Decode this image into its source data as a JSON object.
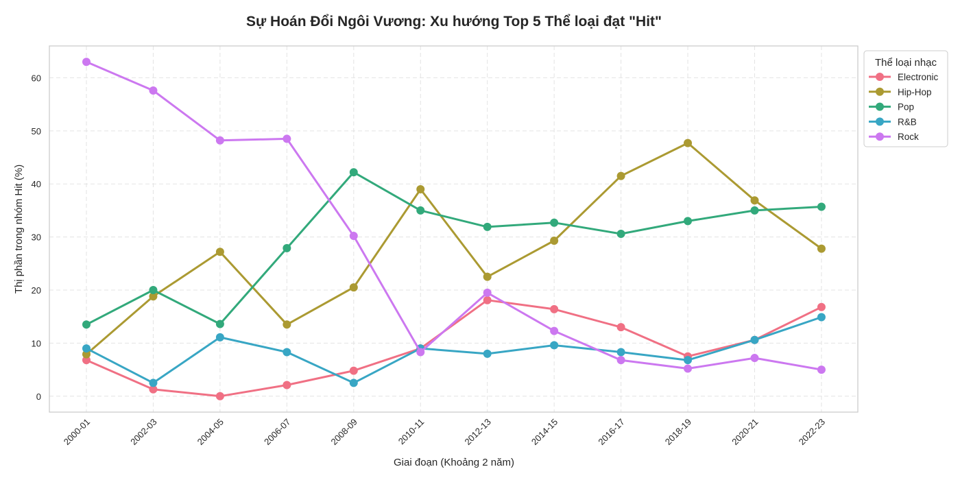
{
  "chart_data": {
    "type": "line",
    "title": "Sự Hoán Đổi Ngôi Vương: Xu hướng Top 5 Thể loại đạt \"Hit\"",
    "xlabel": "Giai đoạn (Khoảng 2 năm)",
    "ylabel": "Thị phần trong nhóm Hit (%)",
    "categories": [
      "2000-01",
      "2002-03",
      "2004-05",
      "2006-07",
      "2008-09",
      "2010-11",
      "2012-13",
      "2014-15",
      "2016-17",
      "2018-19",
      "2020-21",
      "2022-23"
    ],
    "ylim": [
      -3,
      66
    ],
    "yticks": [
      0,
      10,
      20,
      30,
      40,
      50,
      60
    ],
    "grid": true,
    "legend_title": "Thể loại nhạc",
    "legend_position": "outside-top-right",
    "series": [
      {
        "name": "Electronic",
        "color": "#f07084",
        "values": [
          6.8,
          1.3,
          0.0,
          2.1,
          4.8,
          9.0,
          18.1,
          16.4,
          13.0,
          7.5,
          10.6,
          16.8
        ]
      },
      {
        "name": "Hip-Hop",
        "color": "#ab9a32",
        "values": [
          7.9,
          18.8,
          27.2,
          13.5,
          20.5,
          39.0,
          22.5,
          29.3,
          41.5,
          47.7,
          36.9,
          27.8
        ]
      },
      {
        "name": "Pop",
        "color": "#32a97b",
        "values": [
          13.5,
          20.0,
          13.6,
          27.9,
          42.2,
          35.0,
          31.9,
          32.7,
          30.6,
          33.0,
          35.0,
          35.7
        ]
      },
      {
        "name": "R&B",
        "color": "#38a6c4",
        "values": [
          9.0,
          2.5,
          11.1,
          8.3,
          2.5,
          9.0,
          8.0,
          9.6,
          8.3,
          6.8,
          10.6,
          14.9
        ]
      },
      {
        "name": "Rock",
        "color": "#cc78f0",
        "values": [
          63.0,
          57.6,
          48.2,
          48.5,
          30.2,
          8.3,
          19.5,
          12.3,
          6.8,
          5.2,
          7.2,
          5.0
        ]
      }
    ]
  }
}
